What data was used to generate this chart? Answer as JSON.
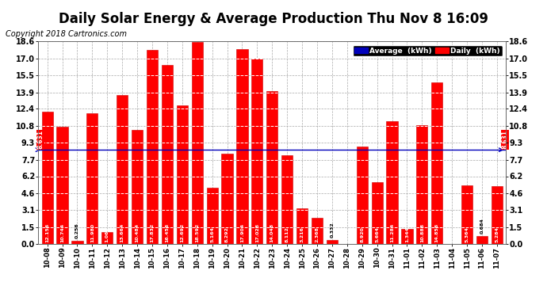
{
  "title": "Daily Solar Energy & Average Production Thu Nov 8 16:09",
  "copyright": "Copyright 2018 Cartronics.com",
  "average_value": 8.631,
  "categories": [
    "10-08",
    "10-09",
    "10-10",
    "10-11",
    "10-12",
    "10-13",
    "10-14",
    "10-15",
    "10-16",
    "10-17",
    "10-18",
    "10-19",
    "10-20",
    "10-21",
    "10-22",
    "10-23",
    "10-24",
    "10-25",
    "10-26",
    "10-27",
    "10-28",
    "10-29",
    "10-30",
    "10-31",
    "11-01",
    "11-02",
    "11-03",
    "11-04",
    "11-05",
    "11-06",
    "11-07"
  ],
  "values": [
    12.156,
    10.744,
    0.256,
    11.98,
    1.06,
    13.664,
    10.484,
    17.832,
    16.456,
    12.692,
    18.592,
    5.164,
    8.292,
    17.904,
    17.028,
    14.048,
    8.112,
    3.216,
    2.368,
    0.332,
    0.0,
    8.92,
    5.664,
    11.284,
    1.344,
    10.888,
    14.856,
    0.0,
    5.364,
    0.684,
    5.284
  ],
  "bar_color": "#FF0000",
  "bar_edge_color": "#CC0000",
  "avg_line_color": "#0000BB",
  "background_color": "#FFFFFF",
  "plot_bg_color": "#FFFFFF",
  "grid_color": "#AAAAAA",
  "yticks": [
    0.0,
    1.5,
    3.1,
    4.6,
    6.2,
    7.7,
    9.3,
    10.8,
    12.4,
    13.9,
    15.5,
    17.0,
    18.6
  ],
  "ylim": [
    0.0,
    18.6
  ],
  "title_fontsize": 12,
  "copyright_fontsize": 7,
  "avg_label": "8.631",
  "legend_avg_color": "#0000BB",
  "legend_daily_color": "#FF0000"
}
